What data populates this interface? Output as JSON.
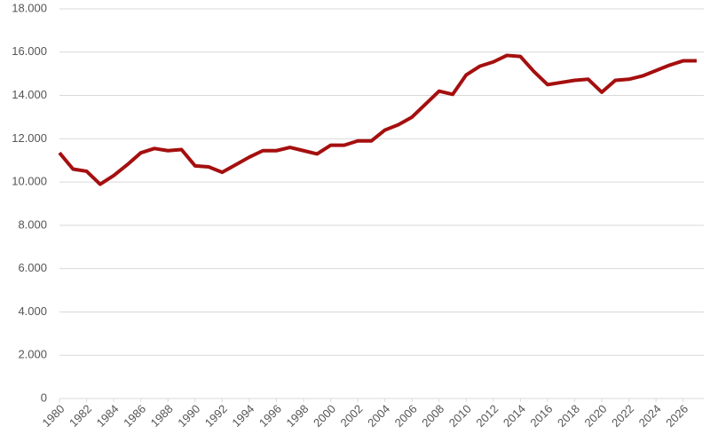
{
  "chart_data": {
    "type": "line",
    "x": [
      1980,
      1981,
      1982,
      1983,
      1984,
      1985,
      1986,
      1987,
      1988,
      1989,
      1990,
      1991,
      1992,
      1993,
      1994,
      1995,
      1996,
      1997,
      1998,
      1999,
      2000,
      2001,
      2002,
      2003,
      2004,
      2005,
      2006,
      2007,
      2008,
      2009,
      2010,
      2011,
      2012,
      2013,
      2014,
      2015,
      2016,
      2017,
      2018,
      2019,
      2020,
      2021,
      2022,
      2023,
      2024,
      2025,
      2026,
      2027
    ],
    "series": [
      {
        "color": "#a50f0f",
        "values": [
          11350,
          10600,
          10500,
          9900,
          10300,
          10800,
          11350,
          11550,
          11450,
          11500,
          10750,
          10700,
          10450,
          10800,
          11150,
          11450,
          11450,
          11600,
          11450,
          11300,
          11700,
          11700,
          11900,
          11900,
          12400,
          12650,
          13000,
          13600,
          14200,
          14050,
          14950,
          15350,
          15550,
          15850,
          15800,
          15100,
          14500,
          14600,
          14700,
          14750,
          14150,
          14700,
          14750,
          14900,
          15150,
          15400,
          15600,
          15600
        ]
      }
    ],
    "xlim": [
      1980,
      2027
    ],
    "xticks": [
      1980,
      1982,
      1984,
      1986,
      1988,
      1990,
      1992,
      1994,
      1996,
      1998,
      2000,
      2002,
      2004,
      2006,
      2008,
      2010,
      2012,
      2014,
      2016,
      2018,
      2020,
      2022,
      2024,
      2026
    ],
    "ylim": [
      0,
      18000
    ],
    "yticks": [
      0,
      {
        "value": 2000,
        "label": "2.000"
      },
      {
        "value": 4000,
        "label": "4.000"
      },
      {
        "value": 6000,
        "label": "6.000"
      },
      {
        "value": 8000,
        "label": "8.000"
      },
      {
        "value": 10000,
        "label": "10.000"
      },
      {
        "value": 12000,
        "label": "12.000"
      },
      {
        "value": 14000,
        "label": "14.000"
      },
      {
        "value": 16000,
        "label": "16.000"
      },
      {
        "value": 18000,
        "label": "18.000"
      }
    ],
    "grid": true
  }
}
